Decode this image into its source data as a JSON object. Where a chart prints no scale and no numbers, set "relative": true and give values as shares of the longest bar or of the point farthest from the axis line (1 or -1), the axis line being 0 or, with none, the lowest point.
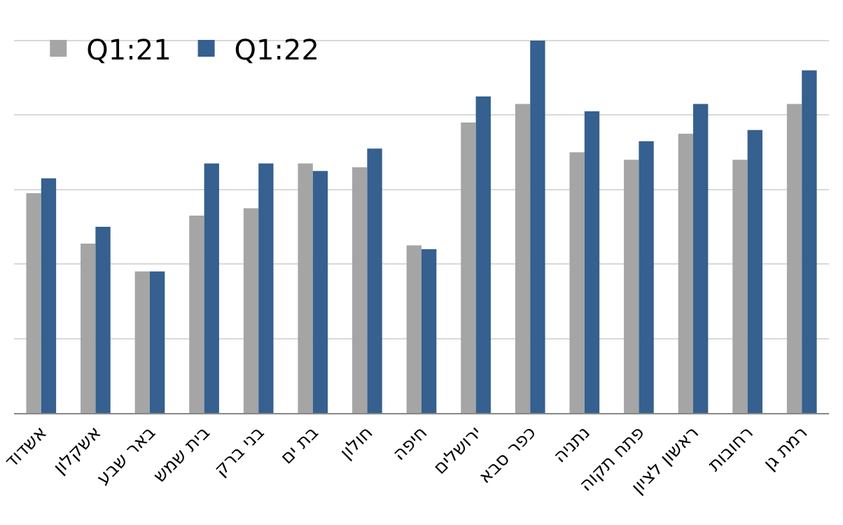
{
  "chart_data": {
    "type": "bar",
    "relative": true,
    "categories": [
      "אשדוד",
      "אשקלון",
      "באר שבע",
      "בית שמש",
      "בני ברק",
      "בת ים",
      "חולון",
      "חיפה",
      "ירושלים",
      "כפר סבא",
      "נתניה",
      "פתח תקוה",
      "ראשון לציון",
      "רחובות",
      "רמת גן"
    ],
    "series": [
      {
        "name": "Q1:21",
        "color": "#a5a5a5",
        "values": [
          0.59,
          0.455,
          0.38,
          0.53,
          0.55,
          0.67,
          0.66,
          0.45,
          0.78,
          0.83,
          0.7,
          0.68,
          0.75,
          0.68,
          0.83
        ]
      },
      {
        "name": "Q1:22",
        "color": "#35608f",
        "values": [
          0.63,
          0.5,
          0.38,
          0.67,
          0.67,
          0.65,
          0.71,
          0.44,
          0.85,
          1.0,
          0.81,
          0.73,
          0.83,
          0.76,
          0.92
        ]
      }
    ],
    "grid": "y",
    "legend": "top left"
  }
}
